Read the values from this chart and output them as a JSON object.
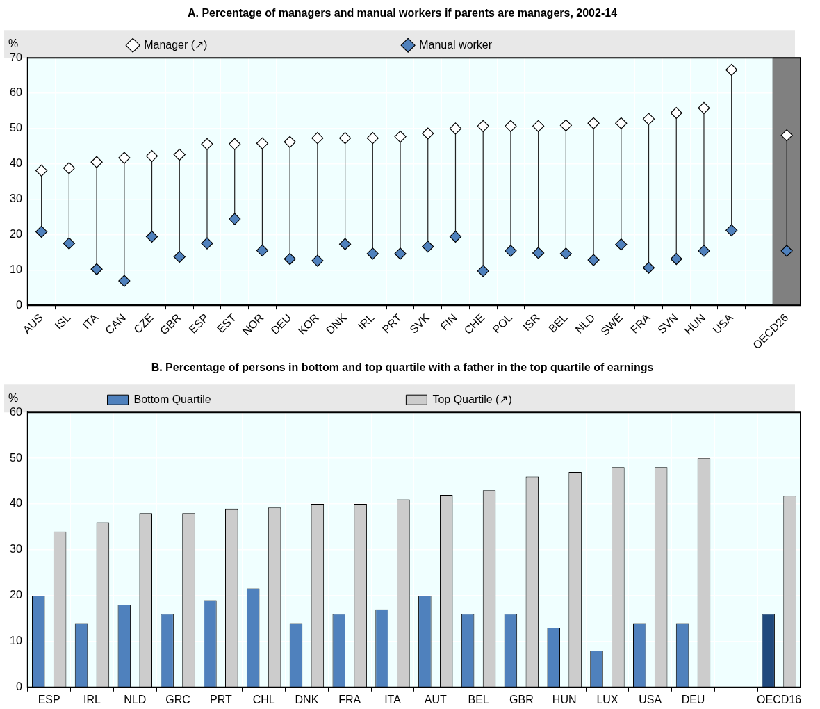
{
  "chart_data": [
    {
      "type": "scatter",
      "title": "A. Percentage of managers and manual workers if parents are managers, 2002-14",
      "ylabel": "%",
      "categories": [
        "AUS",
        "ISL",
        "ITA",
        "CAN",
        "CZE",
        "GBR",
        "ESP",
        "EST",
        "NOR",
        "DEU",
        "KOR",
        "DNK",
        "IRL",
        "PRT",
        "SVK",
        "FIN",
        "CHE",
        "POL",
        "ISR",
        "BEL",
        "NLD",
        "SWE",
        "FRA",
        "SVN",
        "HUN",
        "USA",
        null,
        "OECD26"
      ],
      "series": [
        {
          "name": "Manager (↗)",
          "color": "#ffffff",
          "values": [
            38.1,
            38.8,
            40.5,
            41.7,
            42.2,
            42.6,
            45.6,
            45.6,
            45.8,
            46.2,
            47.3,
            47.3,
            47.3,
            47.7,
            48.6,
            50.0,
            50.7,
            50.7,
            50.7,
            50.9,
            51.5,
            51.5,
            52.7,
            54.4,
            55.8,
            66.6,
            null,
            48.1
          ]
        },
        {
          "name": "Manual worker",
          "color": "#4f81bd",
          "values": [
            20.8,
            17.5,
            10.2,
            6.9,
            19.4,
            13.7,
            17.5,
            24.4,
            15.5,
            13.1,
            12.6,
            17.3,
            14.6,
            14.6,
            16.6,
            19.4,
            9.7,
            15.4,
            14.8,
            14.6,
            12.8,
            17.2,
            10.6,
            13.1,
            15.4,
            21.2,
            null,
            15.4
          ]
        }
      ],
      "ylim": [
        0,
        70
      ],
      "yticks": [
        0,
        10,
        20,
        30,
        40,
        50,
        60,
        70
      ],
      "grid": true,
      "legend": "top",
      "marker": "diamond",
      "bands": [
        {
          "axis": "x",
          "from": "OECD26",
          "to": "OECD26",
          "color": "#808080"
        }
      ]
    },
    {
      "type": "bar",
      "title": "B. Percentage of persons in bottom and top quartile with a father in the top quartile of earnings",
      "ylabel": "%",
      "categories": [
        "ESP",
        "IRL",
        "NLD",
        "GRC",
        "PRT",
        "CHL",
        "DNK",
        "FRA",
        "ITA",
        "AUT",
        "BEL",
        "GBR",
        "HUN",
        "LUX",
        "USA",
        "DEU",
        null,
        "OECD16"
      ],
      "series": [
        {
          "name": "Bottom Quartile",
          "color": "#4f81bd",
          "colors": [
            "#4f81bd",
            "#4f81bd",
            "#4f81bd",
            "#4f81bd",
            "#4f81bd",
            "#4f81bd",
            "#4f81bd",
            "#4f81bd",
            "#4f81bd",
            "#4f81bd",
            "#4f81bd",
            "#4f81bd",
            "#4f81bd",
            "#4f81bd",
            "#4f81bd",
            "#4f81bd",
            "#4f81bd",
            "#1f497d"
          ],
          "values": [
            20,
            14,
            18,
            16,
            19,
            21.6,
            14,
            16,
            17,
            20,
            16,
            16,
            13,
            8,
            14,
            14,
            null,
            16
          ]
        },
        {
          "name": "Top Quartile (↗)",
          "color": "#cccccc",
          "values": [
            34,
            36,
            38,
            38,
            39,
            39.2,
            40,
            40,
            41,
            42,
            43,
            46,
            47,
            48,
            48,
            50,
            null,
            41.8
          ]
        }
      ],
      "ylim": [
        0,
        60
      ],
      "yticks": [
        0,
        10,
        20,
        30,
        40,
        50,
        60
      ],
      "grid": true,
      "legend": "top"
    }
  ]
}
